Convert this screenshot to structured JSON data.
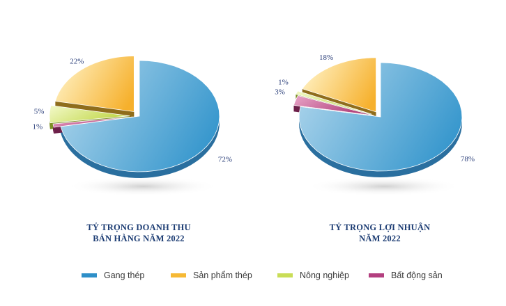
{
  "chart_data": [
    {
      "type": "pie",
      "title": "TỶ TRỌNG DOANH THU BÁN HÀNG NĂM 2022",
      "title_lines": [
        "TỶ TRỌNG DOANH THU",
        "BÁN HÀNG NĂM 2022"
      ],
      "categories": [
        "Gang thép",
        "Sản phẩm thép",
        "Nông nghiệp",
        "Bất động sản"
      ],
      "values": [
        72,
        22,
        5,
        1
      ],
      "labels": [
        "72%",
        "22%",
        "5%",
        "1%"
      ]
    },
    {
      "type": "pie",
      "title": "TỶ TRỌNG LỢI NHUẬN NĂM 2022",
      "title_lines": [
        "TỶ TRỌNG LỢI NHUẬN",
        "NĂM 2022"
      ],
      "categories": [
        "Gang thép",
        "Sản phẩm thép",
        "Nông nghiệp",
        "Bất động sản"
      ],
      "values": [
        78,
        18,
        1,
        3
      ],
      "labels": [
        "78%",
        "18%",
        "1%",
        "3%"
      ]
    }
  ],
  "legend": {
    "position": "bottom",
    "items": [
      {
        "label": "Gang thép",
        "color": "#2e8fc8"
      },
      {
        "label": "Sản phẩm thép",
        "color": "#f6b935"
      },
      {
        "label": "Nông nghiệp",
        "color": "#c9dd57"
      },
      {
        "label": "Bất động sản",
        "color": "#b33f7f"
      }
    ]
  },
  "colors": {
    "slices": [
      {
        "light": "#a8d2ea",
        "dark": "#3395cc",
        "edge": "#2a6f9f"
      },
      {
        "light": "#fff1c2",
        "dark": "#f6b02c",
        "edge": "#8f6d1c"
      },
      {
        "light": "#eef6bd",
        "dark": "#bcd33b",
        "edge": "#7d8f25"
      },
      {
        "light": "#e39ac0",
        "dark": "#a9336f",
        "edge": "#6d1f49"
      }
    ],
    "title": "#1c3c73",
    "percent_text": "#2b3f7a"
  }
}
